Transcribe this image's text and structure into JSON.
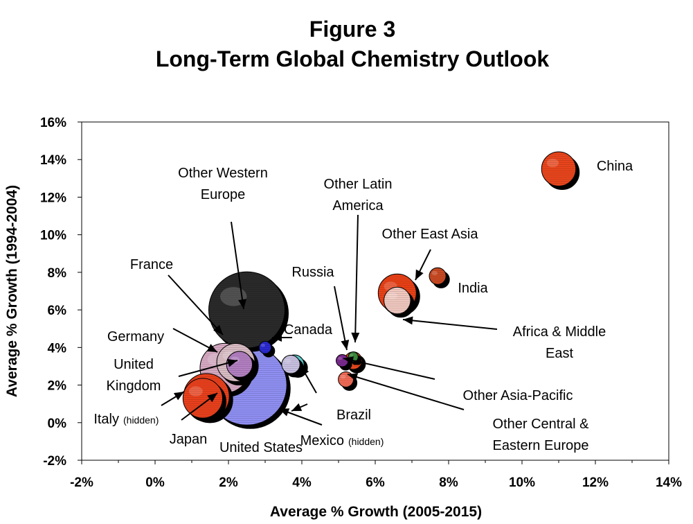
{
  "chart_data": {
    "type": "bubble",
    "title": "Figure 3",
    "subtitle": "Long-Term Global Chemistry Outlook",
    "xlabel": "Average % Growth (2005-2015)",
    "ylabel": "Average % Growth (1994-2004)",
    "xlim": [
      -2,
      14
    ],
    "ylim": [
      -2,
      16
    ],
    "x_ticks": [
      "-2%",
      "0%",
      "2%",
      "4%",
      "6%",
      "8%",
      "10%",
      "12%",
      "14%"
    ],
    "y_ticks": [
      "-2%",
      "0%",
      "2%",
      "4%",
      "6%",
      "8%",
      "10%",
      "12%",
      "14%",
      "16%"
    ],
    "grid": false,
    "legend": "none",
    "points": [
      {
        "name": "United States",
        "x": 2.5,
        "y": 2.0,
        "size": 10.5,
        "color": "#8f8ff2"
      },
      {
        "name": "Other Western Europe",
        "x": 2.5,
        "y": 6.0,
        "size": 10.0,
        "color": "#2b2b2b"
      },
      {
        "name": "France",
        "x": 2.2,
        "y": 3.2,
        "size": 5.0,
        "color": "#d8bcc4"
      },
      {
        "name": "Germany",
        "x": 1.9,
        "y": 2.9,
        "size": 6.5,
        "color": "#d6a9c2"
      },
      {
        "name": "United Kingdom",
        "x": 2.3,
        "y": 3.1,
        "size": 3.4,
        "color": "#b27fc0"
      },
      {
        "name": "Canada",
        "x": 3.0,
        "y": 4.0,
        "size": 1.6,
        "color": "#2a2ad0"
      },
      {
        "name": "Mexico",
        "x": 3.7,
        "y": 3.1,
        "size": 2.4,
        "color": "#c8c0e0"
      },
      {
        "name": "Brazil",
        "x": 3.8,
        "y": 3.1,
        "size": 2.5,
        "color": "#5cd0d0"
      },
      {
        "name": "Japan",
        "x": 1.4,
        "y": 1.4,
        "size": 6.0,
        "color": "#e8401e"
      },
      {
        "name": "Italy",
        "x": 1.3,
        "y": 1.3,
        "size": 5.2,
        "color": "#e8401e"
      },
      {
        "name": "Russia",
        "x": 5.1,
        "y": 3.3,
        "size": 1.6,
        "color": "#7a2a8e"
      },
      {
        "name": "Other Latin America",
        "x": 5.4,
        "y": 3.5,
        "size": 1.3,
        "color": "#3a8a3a"
      },
      {
        "name": "Other Asia-Pacific",
        "x": 5.4,
        "y": 3.3,
        "size": 2.3,
        "color": "#e84a1e"
      },
      {
        "name": "Other Central & Eastern Europe",
        "x": 5.2,
        "y": 2.3,
        "size": 2.0,
        "color": "#f06a55"
      },
      {
        "name": "Africa & Middle East",
        "x": 6.6,
        "y": 6.5,
        "size": 3.5,
        "color": "#f0c8c0"
      },
      {
        "name": "Other East Asia",
        "x": 6.6,
        "y": 6.9,
        "size": 5.0,
        "color": "#e84018"
      },
      {
        "name": "India",
        "x": 7.7,
        "y": 7.8,
        "size": 2.2,
        "color": "#c84820"
      },
      {
        "name": "China",
        "x": 11.0,
        "y": 13.5,
        "size": 4.5,
        "color": "#e8451e"
      }
    ],
    "annotations": [
      {
        "text": "Other Western",
        "text2": "Europe"
      },
      {
        "text": "France"
      },
      {
        "text": "Germany"
      },
      {
        "text": "United",
        "text2": "Kingdom"
      },
      {
        "text": "Italy",
        "note": "(hidden)"
      },
      {
        "text": "Japan"
      },
      {
        "text": "United States"
      },
      {
        "text": "Canada"
      },
      {
        "text": "Brazil"
      },
      {
        "text": "Mexico",
        "note": "(hidden)"
      },
      {
        "text": "Russia"
      },
      {
        "text": "Other Latin",
        "text2": "America"
      },
      {
        "text": "Other East Asia"
      },
      {
        "text": "India"
      },
      {
        "text": "Africa & Middle",
        "text2": "East"
      },
      {
        "text": "Other Asia-Pacific"
      },
      {
        "text": "Other Central &",
        "text2": "Eastern Europe"
      },
      {
        "text": "China"
      }
    ]
  }
}
